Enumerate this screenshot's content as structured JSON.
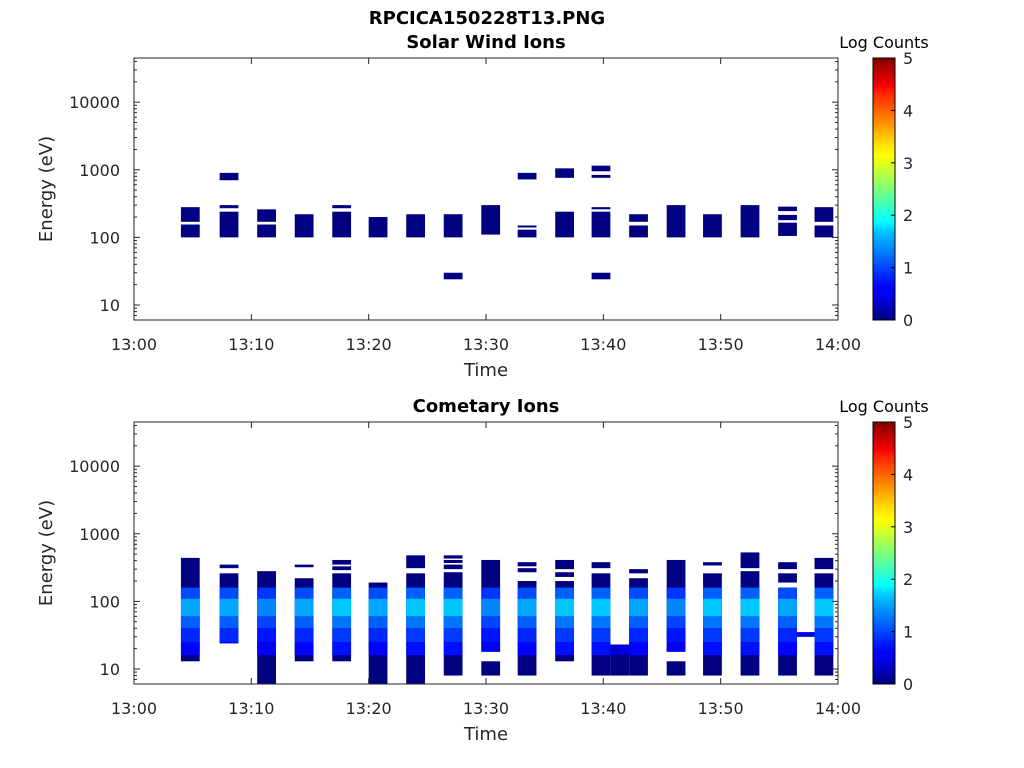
{
  "figure_title": "RPCICA150228T13.PNG",
  "chart_data": [
    {
      "type": "heatmap",
      "title": "Solar Wind Ions",
      "xlabel": "Time",
      "ylabel": "Energy (eV)",
      "x_tick_labels": [
        "13:00",
        "13:10",
        "13:20",
        "13:30",
        "13:40",
        "13:50",
        "14:00"
      ],
      "y_tick_labels": [
        "10",
        "100",
        "1000",
        "10000"
      ],
      "y_scale": "log",
      "x_range_minutes": [
        0,
        60
      ],
      "y_range_eV": [
        6,
        45000
      ],
      "colorbar": {
        "label": "Log Counts",
        "ticks": [
          "0",
          "1",
          "2",
          "3",
          "4",
          "5"
        ],
        "range": [
          0,
          5
        ],
        "colormap": "jet"
      },
      "blocks": [
        {
          "t": [
            4.0,
            5.6
          ],
          "e": [
            [
              100,
              155
            ],
            [
              170,
              280
            ]
          ],
          "v": 0.05
        },
        {
          "t": [
            7.3,
            8.9
          ],
          "e": [
            [
              100,
              240
            ],
            [
              270,
              300
            ],
            [
              700,
              900
            ]
          ],
          "v": 0.05
        },
        {
          "t": [
            10.5,
            12.1
          ],
          "e": [
            [
              100,
              155
            ],
            [
              170,
              260
            ]
          ],
          "v": 0.05
        },
        {
          "t": [
            13.7,
            15.3
          ],
          "e": [
            [
              100,
              220
            ]
          ],
          "v": 0.05
        },
        {
          "t": [
            16.9,
            18.5
          ],
          "e": [
            [
              100,
              240
            ],
            [
              270,
              300
            ]
          ],
          "v": 0.05
        },
        {
          "t": [
            20.0,
            21.6
          ],
          "e": [
            [
              100,
              200
            ]
          ],
          "v": 0.05
        },
        {
          "t": [
            23.2,
            24.8
          ],
          "e": [
            [
              100,
              220
            ]
          ],
          "v": 0.05
        },
        {
          "t": [
            26.4,
            28.0
          ],
          "e": [
            [
              24,
              30
            ],
            [
              100,
              220
            ]
          ],
          "v": 0.05
        },
        {
          "t": [
            29.6,
            31.2
          ],
          "e": [
            [
              110,
              300
            ]
          ],
          "v": 0.05
        },
        {
          "t": [
            32.7,
            34.3
          ],
          "e": [
            [
              100,
              130
            ],
            [
              140,
              150
            ],
            [
              720,
              900
            ]
          ],
          "v": 0.05
        },
        {
          "t": [
            35.9,
            37.5
          ],
          "e": [
            [
              100,
              240
            ],
            [
              760,
              1050
            ]
          ],
          "v": 0.05
        },
        {
          "t": [
            39.0,
            40.6
          ],
          "e": [
            [
              24,
              30
            ],
            [
              100,
              240
            ],
            [
              260,
              280
            ],
            [
              760,
              840
            ],
            [
              950,
              1150
            ]
          ],
          "v": 0.05
        },
        {
          "t": [
            42.2,
            43.8
          ],
          "e": [
            [
              100,
              150
            ],
            [
              170,
              220
            ]
          ],
          "v": 0.05
        },
        {
          "t": [
            45.4,
            47.0
          ],
          "e": [
            [
              100,
              300
            ]
          ],
          "v": 0.05
        },
        {
          "t": [
            48.5,
            50.1
          ],
          "e": [
            [
              100,
              220
            ]
          ],
          "v": 0.05
        },
        {
          "t": [
            51.7,
            53.3
          ],
          "e": [
            [
              100,
              300
            ]
          ],
          "v": 0.05
        },
        {
          "t": [
            54.9,
            56.5
          ],
          "e": [
            [
              105,
              165
            ],
            [
              180,
              215
            ],
            [
              245,
              285
            ]
          ],
          "v": 0.05
        },
        {
          "t": [
            58.0,
            59.6
          ],
          "e": [
            [
              100,
              150
            ],
            [
              170,
              280
            ]
          ],
          "v": 0.05
        }
      ]
    },
    {
      "type": "heatmap",
      "title": "Cometary Ions",
      "xlabel": "Time",
      "ylabel": "Energy (eV)",
      "x_tick_labels": [
        "13:00",
        "13:10",
        "13:20",
        "13:30",
        "13:40",
        "13:50",
        "14:00"
      ],
      "y_tick_labels": [
        "10",
        "100",
        "1000",
        "10000"
      ],
      "y_scale": "log",
      "x_range_minutes": [
        0,
        60
      ],
      "y_range_eV": [
        6,
        45000
      ],
      "colorbar": {
        "label": "Log Counts",
        "ticks": [
          "0",
          "1",
          "2",
          "3",
          "4",
          "5"
        ],
        "range": [
          0,
          5
        ],
        "colormap": "jet"
      },
      "blocks": [
        {
          "t": [
            4.0,
            5.6
          ],
          "e": [
            [
              13,
              440
            ]
          ],
          "v": 0.45
        },
        {
          "t": [
            7.3,
            8.9
          ],
          "e": [
            [
              24,
              260
            ],
            [
              310,
              350
            ]
          ],
          "v": 0.45
        },
        {
          "t": [
            10.5,
            12.1
          ],
          "e": [
            [
              6,
              280
            ]
          ],
          "v": 0.4
        },
        {
          "t": [
            13.7,
            15.3
          ],
          "e": [
            [
              13,
              220
            ],
            [
              320,
              350
            ]
          ],
          "v": 0.45
        },
        {
          "t": [
            16.9,
            18.5
          ],
          "e": [
            [
              13,
              260
            ],
            [
              290,
              330
            ],
            [
              350,
              410
            ]
          ],
          "v": 0.5
        },
        {
          "t": [
            20.0,
            21.6
          ],
          "e": [
            [
              6,
              190
            ]
          ],
          "v": 0.45
        },
        {
          "t": [
            23.2,
            24.8
          ],
          "e": [
            [
              6,
              260
            ],
            [
              310,
              480
            ]
          ],
          "v": 0.5
        },
        {
          "t": [
            26.4,
            28.0
          ],
          "e": [
            [
              8,
              270
            ],
            [
              300,
              350
            ],
            [
              370,
              410
            ],
            [
              430,
              480
            ]
          ],
          "v": 0.5
        },
        {
          "t": [
            29.6,
            31.2
          ],
          "e": [
            [
              8,
              13
            ],
            [
              18,
              410
            ]
          ],
          "v": 0.4
        },
        {
          "t": [
            32.7,
            34.3
          ],
          "e": [
            [
              8,
              200
            ],
            [
              270,
              310
            ],
            [
              330,
              380
            ]
          ],
          "v": 0.45
        },
        {
          "t": [
            35.9,
            37.5
          ],
          "e": [
            [
              13,
              200
            ],
            [
              230,
              270
            ],
            [
              300,
              410
            ]
          ],
          "v": 0.5
        },
        {
          "t": [
            39.0,
            40.6
          ],
          "e": [
            [
              8,
              260
            ],
            [
              310,
              380
            ]
          ],
          "v": 0.5
        },
        {
          "t": [
            40.6,
            42.2
          ],
          "e": [
            [
              8,
              23
            ]
          ],
          "v": 0.3
        },
        {
          "t": [
            42.2,
            43.8
          ],
          "e": [
            [
              8,
              220
            ],
            [
              260,
              300
            ]
          ],
          "v": 0.45
        },
        {
          "t": [
            45.4,
            47.0
          ],
          "e": [
            [
              8,
              13
            ],
            [
              18,
              410
            ]
          ],
          "v": 0.4
        },
        {
          "t": [
            48.5,
            50.1
          ],
          "e": [
            [
              8,
              260
            ],
            [
              340,
              380
            ]
          ],
          "v": 0.5
        },
        {
          "t": [
            51.7,
            53.3
          ],
          "e": [
            [
              8,
              280
            ],
            [
              310,
              530
            ]
          ],
          "v": 0.5
        },
        {
          "t": [
            54.9,
            56.5
          ],
          "e": [
            [
              8,
              160
            ],
            [
              190,
              260
            ],
            [
              300,
              380
            ]
          ],
          "v": 0.45
        },
        {
          "t": [
            56.5,
            58.0
          ],
          "e": [
            [
              30,
              35
            ]
          ],
          "v": 0.3
        },
        {
          "t": [
            58.0,
            59.6
          ],
          "e": [
            [
              8,
              260
            ],
            [
              300,
              440
            ]
          ],
          "v": 0.5
        }
      ]
    }
  ]
}
